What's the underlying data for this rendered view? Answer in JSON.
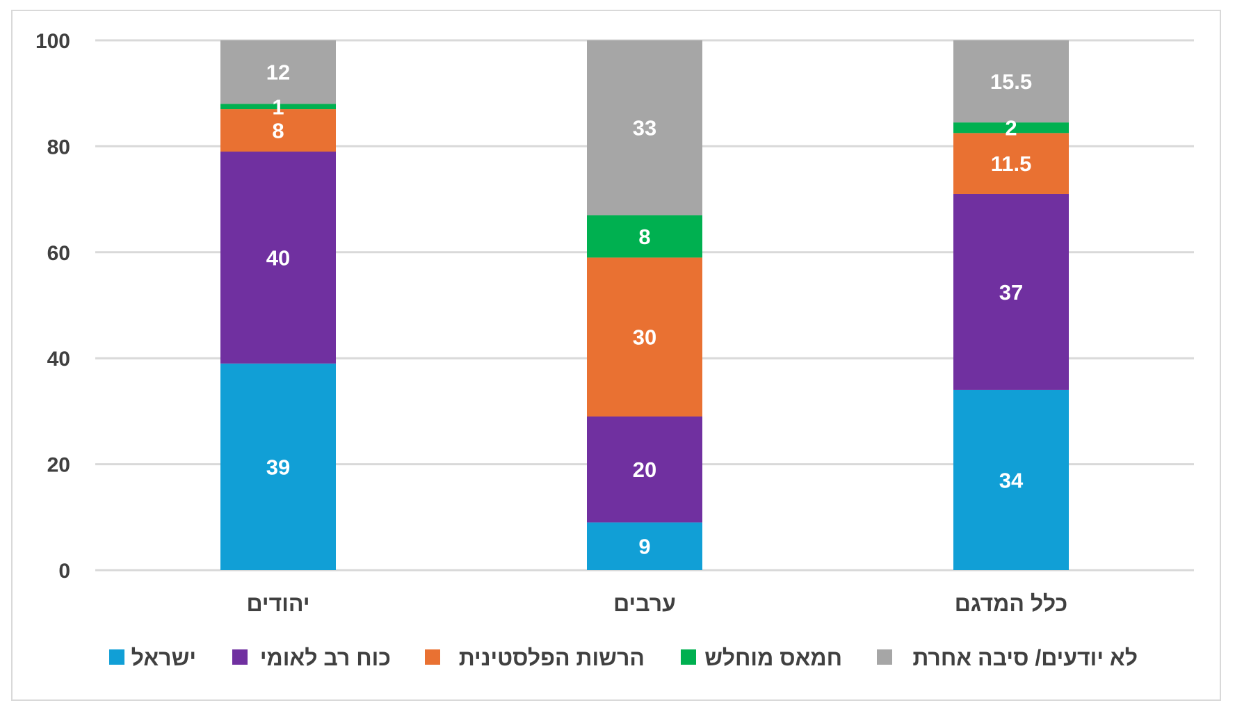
{
  "chart_data": {
    "type": "bar",
    "stacked": true,
    "categories": [
      "יהודים",
      "ערבים",
      "כלל המדגם"
    ],
    "series": [
      {
        "name": "ישראל",
        "color": "#119fd6",
        "values": [
          39,
          9,
          34
        ]
      },
      {
        "name": "כוח רב לאומי",
        "color": "#7030a0",
        "values": [
          40,
          20,
          37
        ]
      },
      {
        "name": "הרשות הפלסטינית",
        "color": "#e97132",
        "values": [
          8,
          30,
          11.5
        ]
      },
      {
        "name": "חמאס מוחלש",
        "color": "#00b050",
        "values": [
          1,
          8,
          2
        ]
      },
      {
        "name": "לא יודעים/ סיבה אחרת",
        "color": "#a6a6a6",
        "values": [
          12,
          33,
          15.5
        ]
      }
    ],
    "ylim": [
      0,
      100
    ],
    "yticks": [
      0,
      20,
      40,
      60,
      80,
      100
    ],
    "grid": true,
    "legend": "bottom",
    "title": "",
    "xlabel": "",
    "ylabel": ""
  }
}
